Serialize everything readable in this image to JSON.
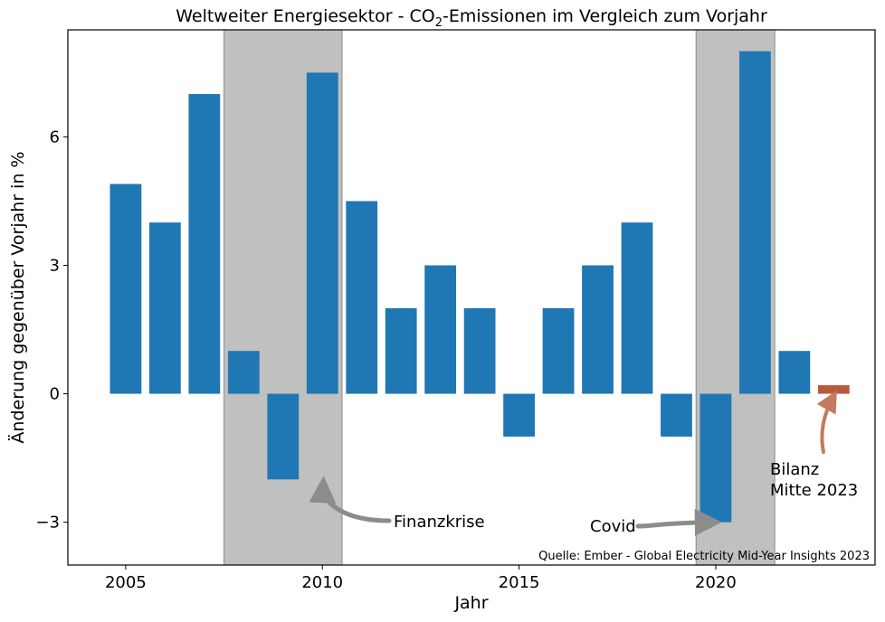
{
  "chart_data": {
    "type": "bar",
    "title_parts": [
      "Weltweiter Energiesektor - CO",
      "2",
      "-Emissionen im Vergleich zum Vorjahr"
    ],
    "xlabel": "Jahr",
    "ylabel": "Änderung gegenüber Vorjahr in %",
    "x": [
      2005,
      2006,
      2007,
      2008,
      2009,
      2010,
      2011,
      2012,
      2013,
      2014,
      2015,
      2016,
      2017,
      2018,
      2019,
      2020,
      2021,
      2022,
      2023
    ],
    "values": [
      4.9,
      4.0,
      7.0,
      1.0,
      -2.0,
      7.5,
      4.5,
      2.0,
      3.0,
      2.0,
      -1.0,
      2.0,
      3.0,
      4.0,
      -1.0,
      -3.0,
      8.0,
      1.0,
      0.2
    ],
    "highlight_index": 18,
    "xlim": [
      2003.53,
      2024.05
    ],
    "ylim": [
      -4.0,
      8.5
    ],
    "xticks": [
      2005,
      2010,
      2015,
      2020
    ],
    "yticks": [
      -3,
      0,
      3,
      6
    ],
    "ytick_labels": [
      "−3",
      "0",
      "3",
      "6"
    ],
    "shaded_ranges": [
      [
        2007.5,
        2010.5
      ],
      [
        2019.5,
        2021.5
      ]
    ],
    "annotations": [
      {
        "text": "Finanzkrise",
        "target": [
          2010.0,
          -2.0
        ]
      },
      {
        "text": "Covid",
        "target": [
          2019.95,
          -3.0
        ]
      },
      {
        "lines": [
          "Bilanz",
          "Mitte 2023"
        ],
        "target": [
          2023.0,
          0.2
        ]
      }
    ],
    "source": "Quelle: Ember - Global Electricity Mid-Year Insights 2023",
    "colors": {
      "bar": "#1f77b4",
      "highlight": "#b85a3c",
      "shade": "#c0c0c0",
      "arrow_gray": "#8c8c8c",
      "arrow_orange": "#c47a5c"
    }
  }
}
